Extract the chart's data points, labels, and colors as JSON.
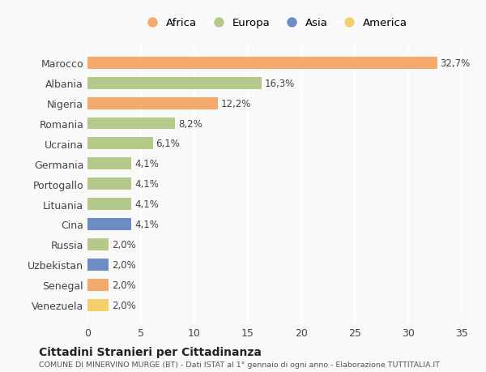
{
  "categories": [
    "Marocco",
    "Albania",
    "Nigeria",
    "Romania",
    "Ucraina",
    "Germania",
    "Portogallo",
    "Lituania",
    "Cina",
    "Russia",
    "Uzbekistan",
    "Senegal",
    "Venezuela"
  ],
  "values": [
    32.7,
    16.3,
    12.2,
    8.2,
    6.1,
    4.1,
    4.1,
    4.1,
    4.1,
    2.0,
    2.0,
    2.0,
    2.0
  ],
  "labels": [
    "32,7%",
    "16,3%",
    "12,2%",
    "8,2%",
    "6,1%",
    "4,1%",
    "4,1%",
    "4,1%",
    "4,1%",
    "2,0%",
    "2,0%",
    "2,0%",
    "2,0%"
  ],
  "colors": [
    "#F4A96D",
    "#B5C98A",
    "#F4A96D",
    "#B5C98A",
    "#B5C98A",
    "#B5C98A",
    "#B5C98A",
    "#B5C98A",
    "#6B8DC4",
    "#B5C98A",
    "#6B8DC4",
    "#F4A96D",
    "#F5D06A"
  ],
  "legend_labels": [
    "Africa",
    "Europa",
    "Asia",
    "America"
  ],
  "legend_colors": [
    "#F4A96D",
    "#B5C98A",
    "#6B8DC4",
    "#F5D06A"
  ],
  "title": "Cittadini Stranieri per Cittadinanza",
  "subtitle": "COMUNE DI MINERVINO MURGE (BT) - Dati ISTAT al 1° gennaio di ogni anno - Elaborazione TUTTITALIA.IT",
  "xlim": [
    0,
    35
  ],
  "xticks": [
    0,
    5,
    10,
    15,
    20,
    25,
    30,
    35
  ],
  "bg_color": "#f9f9f9",
  "grid_color": "#ffffff",
  "bar_height": 0.6
}
